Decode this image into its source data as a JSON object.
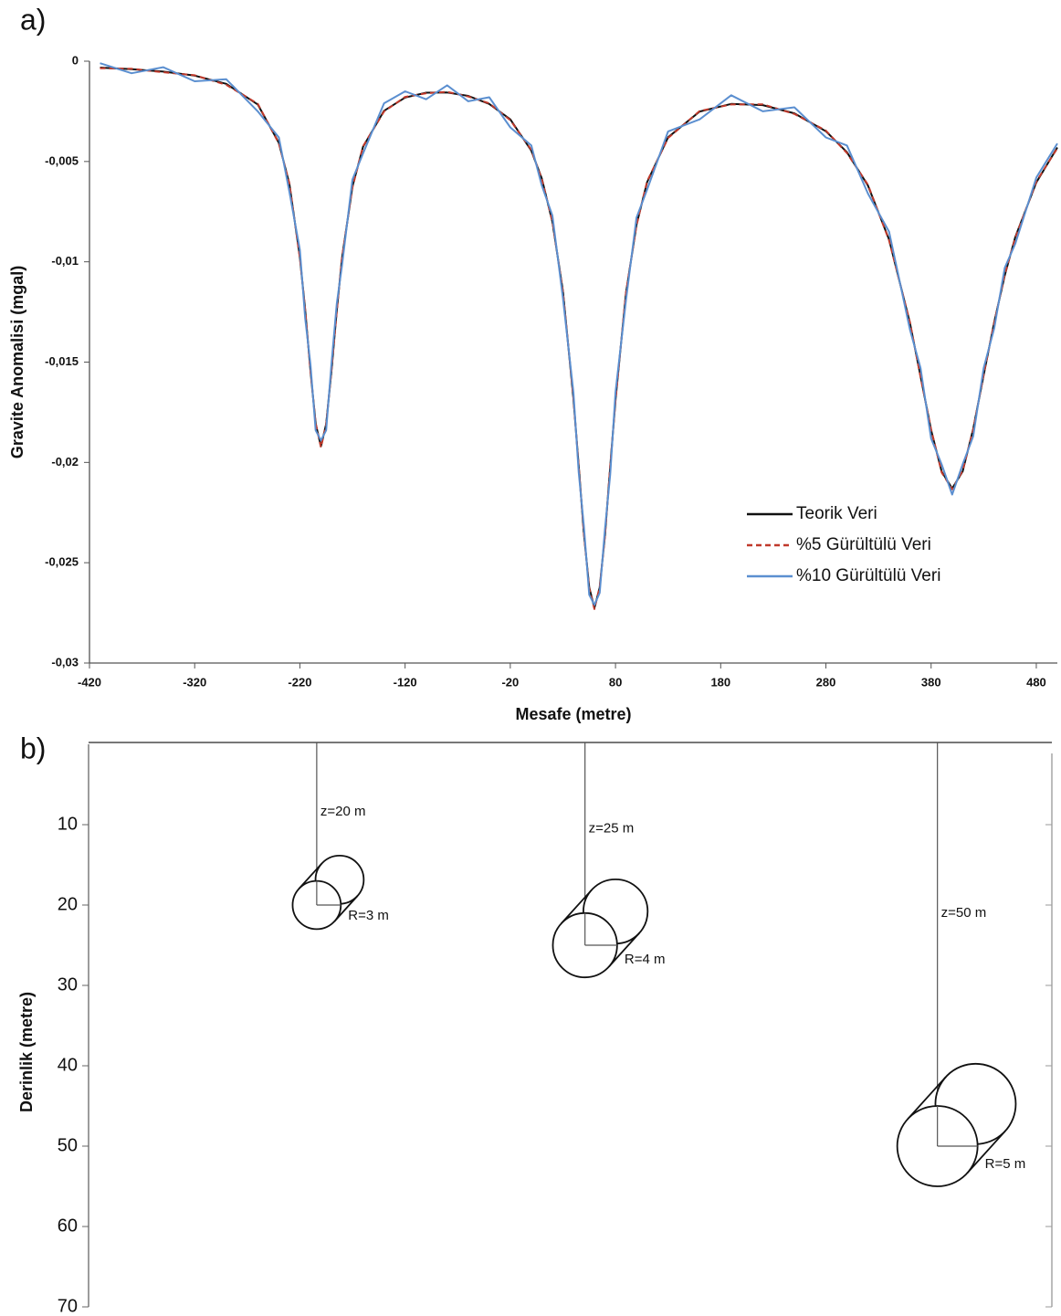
{
  "chart_data": [
    {
      "type": "line",
      "panel_label": "a)",
      "xlabel": "Mesafe (metre)",
      "ylabel": "Gravite Anomalisi (mgal)",
      "xlim": [
        -420,
        500
      ],
      "xticks": [
        -420,
        -320,
        -220,
        -120,
        -20,
        80,
        180,
        280,
        380,
        480
      ],
      "ylim": [
        -0.03,
        0
      ],
      "yticks": [
        {
          "value": -0.03,
          "label": "-0,03"
        },
        {
          "value": -0.025,
          "label": "-0,025"
        },
        {
          "value": -0.02,
          "label": "-0,02"
        },
        {
          "value": -0.015,
          "label": "-0,015"
        },
        {
          "value": -0.01,
          "label": "-0,01"
        },
        {
          "value": -0.005,
          "label": "-0,005"
        },
        0
      ],
      "legend": "lower right",
      "x": [
        -410,
        -380,
        -350,
        -320,
        -290,
        -260,
        -240,
        -230,
        -220,
        -215,
        -210,
        -205,
        -200,
        -195,
        -190,
        -185,
        -180,
        -170,
        -160,
        -140,
        -120,
        -100,
        -80,
        -60,
        -40,
        -20,
        0,
        10,
        20,
        30,
        40,
        45,
        50,
        55,
        60,
        65,
        70,
        75,
        80,
        90,
        100,
        110,
        130,
        160,
        190,
        220,
        250,
        280,
        300,
        320,
        340,
        360,
        370,
        380,
        390,
        400,
        410,
        420,
        430,
        440,
        450,
        460,
        480,
        500
      ],
      "series": [
        {
          "name": "Teorik Veri",
          "color": "#111111",
          "dash": false,
          "values": [
            -0.00032,
            -0.0004,
            -0.00052,
            -0.00072,
            -0.00113,
            -0.00216,
            -0.00407,
            -0.00611,
            -0.00975,
            -0.01239,
            -0.01541,
            -0.01807,
            -0.0192,
            -0.01809,
            -0.01545,
            -0.01246,
            -0.00984,
            -0.00625,
            -0.00427,
            -0.00247,
            -0.00181,
            -0.00157,
            -0.00156,
            -0.00173,
            -0.00213,
            -0.0029,
            -0.00446,
            -0.00585,
            -0.00801,
            -0.01146,
            -0.01681,
            -0.02017,
            -0.02356,
            -0.02622,
            -0.02726,
            -0.02624,
            -0.0236,
            -0.02022,
            -0.01688,
            -0.01156,
            -0.00815,
            -0.00603,
            -0.00379,
            -0.00251,
            -0.00213,
            -0.00219,
            -0.0026,
            -0.00349,
            -0.00454,
            -0.0062,
            -0.00889,
            -0.01308,
            -0.01571,
            -0.01838,
            -0.02046,
            -0.0213,
            -0.02045,
            -0.01834,
            -0.01565,
            -0.013,
            -0.01068,
            -0.00877,
            -0.00604,
            -0.0043
          ]
        },
        {
          "name": "%5 Gürültülü Veri",
          "color": "#c0392b",
          "dash": true,
          "values": [
            -0.00035,
            -0.00038,
            -0.00055,
            -0.0007,
            -0.00118,
            -0.00212,
            -0.0041,
            -0.00608,
            -0.00981,
            -0.01235,
            -0.01546,
            -0.01803,
            -0.01925,
            -0.01812,
            -0.0154,
            -0.0125,
            -0.0098,
            -0.00629,
            -0.00424,
            -0.00251,
            -0.00178,
            -0.0016,
            -0.00153,
            -0.00176,
            -0.0021,
            -0.00294,
            -0.00442,
            -0.00589,
            -0.00797,
            -0.0115,
            -0.01677,
            -0.02021,
            -0.02352,
            -0.02627,
            -0.02731,
            -0.0262,
            -0.02364,
            -0.02018,
            -0.01692,
            -0.01152,
            -0.00819,
            -0.00599,
            -0.00383,
            -0.00248,
            -0.00216,
            -0.00215,
            -0.00263,
            -0.00346,
            -0.00458,
            -0.00616,
            -0.00893,
            -0.01304,
            -0.01575,
            -0.01834,
            -0.0205,
            -0.02134,
            -0.02041,
            -0.01838,
            -0.01561,
            -0.01304,
            -0.01064,
            -0.00881,
            -0.006,
            -0.00434
          ]
        },
        {
          "name": "%10 Gürültülü Veri",
          "color": "#5b8fd0",
          "dash": false,
          "values": [
            -0.0001,
            -0.0006,
            -0.0003,
            -0.001,
            -0.0009,
            -0.0025,
            -0.0038,
            -0.0065,
            -0.0094,
            -0.0128,
            -0.0151,
            -0.0184,
            -0.0189,
            -0.0184,
            -0.0151,
            -0.0121,
            -0.0102,
            -0.0059,
            -0.0046,
            -0.0021,
            -0.0015,
            -0.0019,
            -0.0012,
            -0.002,
            -0.0018,
            -0.0033,
            -0.0042,
            -0.0062,
            -0.0077,
            -0.0118,
            -0.0165,
            -0.0205,
            -0.0232,
            -0.0266,
            -0.0271,
            -0.0265,
            -0.0233,
            -0.0206,
            -0.0165,
            -0.0119,
            -0.0078,
            -0.0064,
            -0.0035,
            -0.0029,
            -0.0017,
            -0.0025,
            -0.0023,
            -0.0038,
            -0.0042,
            -0.0066,
            -0.0085,
            -0.0134,
            -0.0153,
            -0.0188,
            -0.0201,
            -0.0216,
            -0.0201,
            -0.0187,
            -0.0153,
            -0.0133,
            -0.0103,
            -0.0091,
            -0.0058,
            -0.0041
          ]
        }
      ]
    },
    {
      "type": "section",
      "panel_label": "b)",
      "ylabel": "Derinlik (metre)",
      "xlim": [
        -420,
        500
      ],
      "ylim": [
        0,
        70
      ],
      "yticks": [
        10,
        20,
        30,
        40,
        50,
        60,
        70
      ],
      "objects": [
        {
          "x": -204,
          "depth": 20,
          "radius": 3,
          "depth_label": "z=20 m",
          "radius_label": "R=3 m"
        },
        {
          "x": 51,
          "depth": 25,
          "radius": 4,
          "depth_label": "z=25 m",
          "radius_label": "R=4 m"
        },
        {
          "x": 386,
          "depth": 50,
          "radius": 5,
          "depth_label": "z=50 m",
          "radius_label": "R=5 m"
        }
      ]
    }
  ]
}
